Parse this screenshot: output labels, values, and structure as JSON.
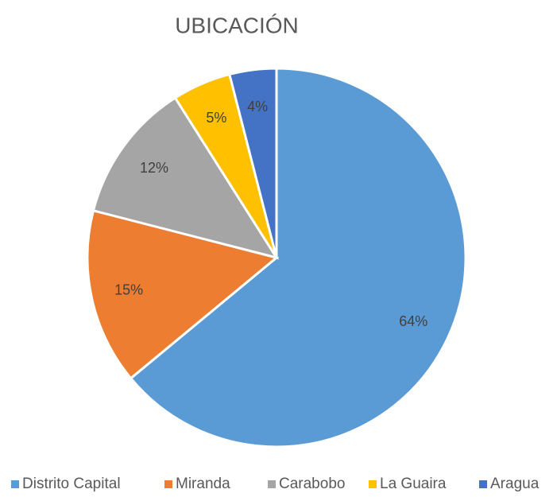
{
  "chart_data": {
    "type": "pie",
    "title": "UBICACIÓN",
    "categories": [
      "Distrito Capital",
      "Miranda",
      "Carabobo",
      "La Guaira",
      "Aragua"
    ],
    "values": [
      64,
      15,
      12,
      5,
      4
    ],
    "value_labels": [
      "64%",
      "15%",
      "12%",
      "5%",
      "4%"
    ],
    "colors": [
      "#5B9BD5",
      "#ED7D31",
      "#A5A5A5",
      "#FFC000",
      "#4472C4"
    ],
    "legend": "bottom"
  }
}
